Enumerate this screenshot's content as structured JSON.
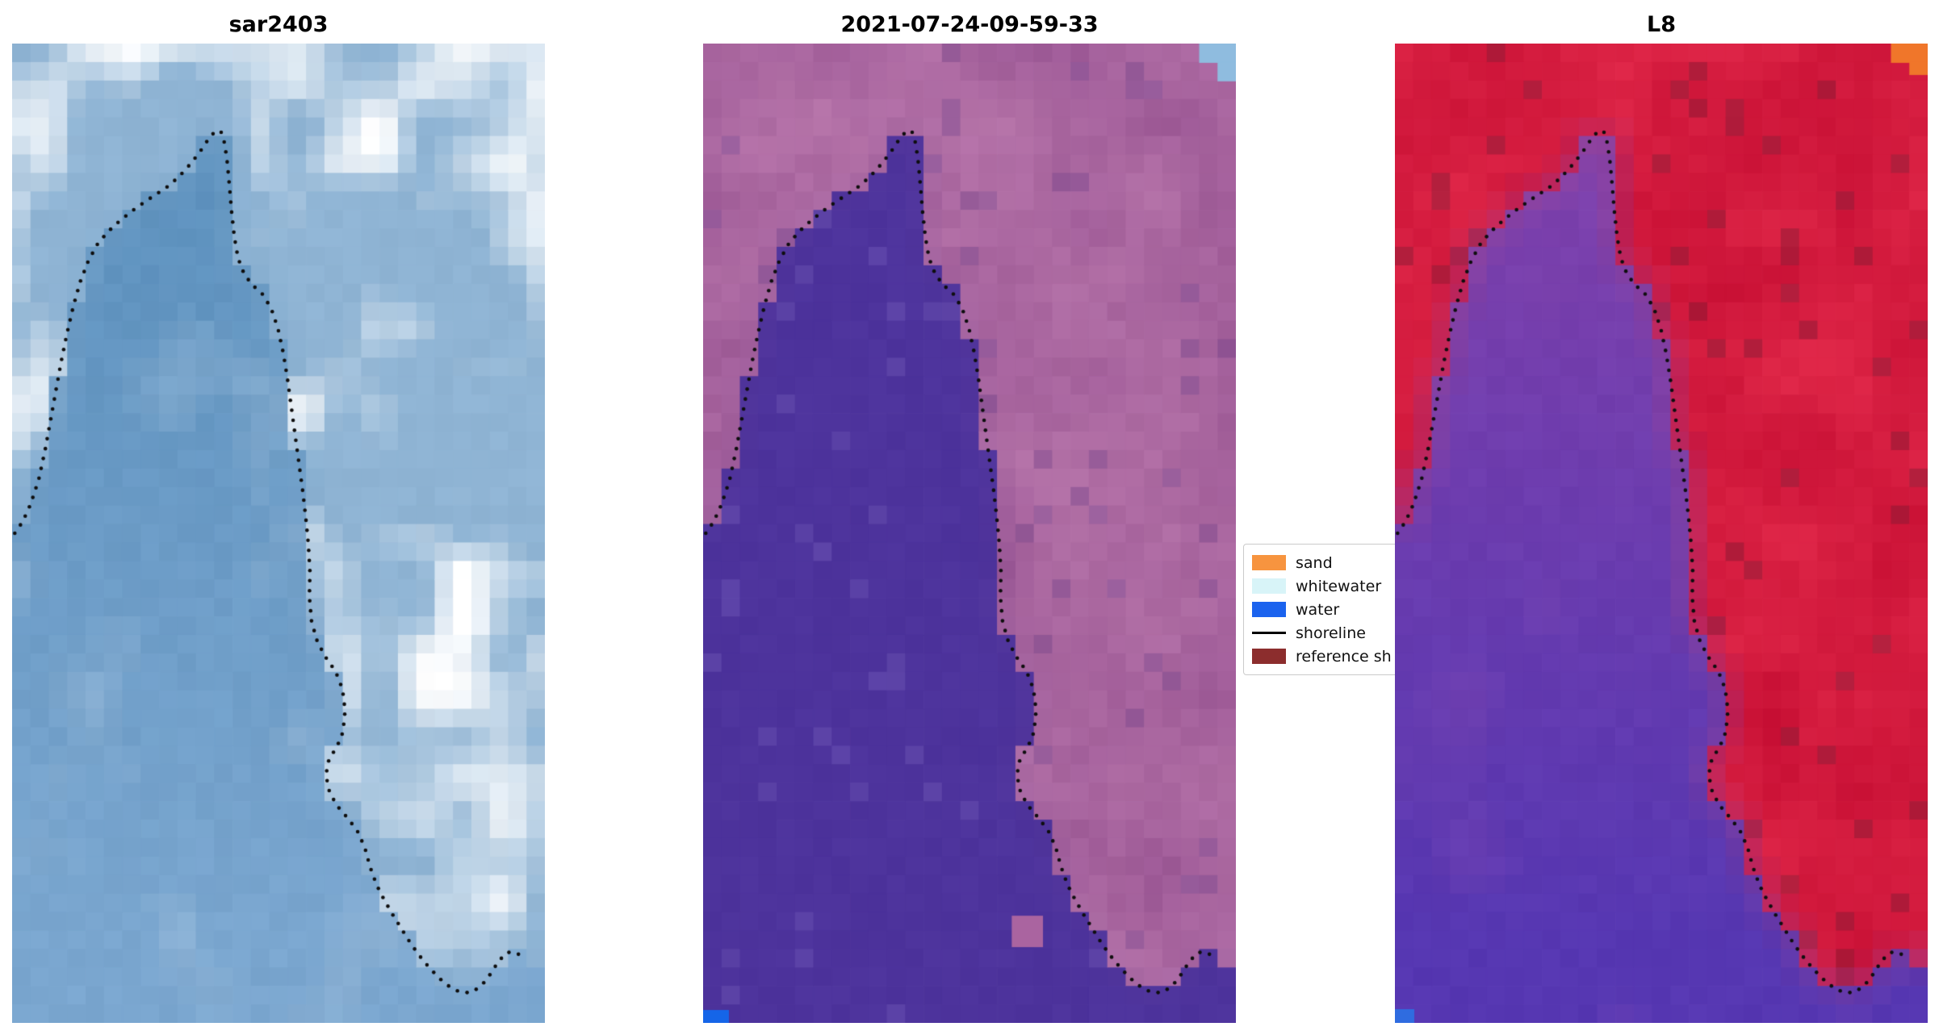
{
  "figure": {
    "background": "#ffffff",
    "panels": [
      {
        "id": "sar",
        "title": "sar2403",
        "colors": {
          "water_top": "#5a8fbc",
          "water_bottom": "#7aa6cf",
          "land_base": "#8fb4d4",
          "cloud": "#ffffff"
        }
      },
      {
        "id": "classified",
        "title": "2021-07-24-09-59-33",
        "colors": {
          "water": "#4d339c",
          "land_dark": "#9b5795",
          "land_light": "#b876aa",
          "corner_blue": "#8fbcdf",
          "bottom_blue": "#1565e8",
          "island_pink": "#aa64a0"
        }
      },
      {
        "id": "l8",
        "title": "L8",
        "colors": {
          "land_dark": "#c70f34",
          "land_light": "#e2294a",
          "maroon": "#8e1e38",
          "water_top": "#7e41ac",
          "water_bottom": "#5637b2",
          "corner_orange": "#f0762a",
          "corner_blue": "#2f6ce0"
        }
      }
    ],
    "legend": {
      "items": [
        {
          "label": "sand",
          "type": "patch",
          "color": "#f7943f"
        },
        {
          "label": "whitewater",
          "type": "patch",
          "color": "#d8f4f8"
        },
        {
          "label": "water",
          "type": "patch",
          "color": "#1b63ee"
        },
        {
          "label": "shoreline",
          "type": "line",
          "color": "#000000"
        },
        {
          "label": "reference sh",
          "type": "patch",
          "color": "#8c2d2d"
        }
      ]
    }
  },
  "chart_data": {
    "type": "heatmap",
    "subtype": "satellite-image-comparison",
    "panels": [
      "sar2403",
      "2021-07-24-09-59-33",
      "L8"
    ],
    "legend_entries": [
      "sand",
      "whitewater",
      "water",
      "shoreline",
      "reference sh"
    ],
    "axes": "off",
    "grid": {
      "cols": 29,
      "rows": 53
    },
    "shoreline_path_norm": [
      [
        0.005,
        0.5
      ],
      [
        0.02,
        0.488
      ],
      [
        0.035,
        0.47
      ],
      [
        0.05,
        0.445
      ],
      [
        0.062,
        0.415
      ],
      [
        0.072,
        0.385
      ],
      [
        0.082,
        0.355
      ],
      [
        0.092,
        0.325
      ],
      [
        0.103,
        0.296
      ],
      [
        0.115,
        0.268
      ],
      [
        0.128,
        0.243
      ],
      [
        0.143,
        0.222
      ],
      [
        0.16,
        0.205
      ],
      [
        0.18,
        0.192
      ],
      [
        0.202,
        0.181
      ],
      [
        0.225,
        0.171
      ],
      [
        0.248,
        0.162
      ],
      [
        0.27,
        0.154
      ],
      [
        0.292,
        0.146
      ],
      [
        0.313,
        0.136
      ],
      [
        0.333,
        0.124
      ],
      [
        0.352,
        0.111
      ],
      [
        0.368,
        0.098
      ],
      [
        0.382,
        0.089
      ],
      [
        0.392,
        0.09
      ],
      [
        0.399,
        0.102
      ],
      [
        0.404,
        0.122
      ],
      [
        0.408,
        0.146
      ],
      [
        0.412,
        0.172
      ],
      [
        0.417,
        0.197
      ],
      [
        0.424,
        0.219
      ],
      [
        0.436,
        0.236
      ],
      [
        0.452,
        0.247
      ],
      [
        0.47,
        0.256
      ],
      [
        0.486,
        0.27
      ],
      [
        0.499,
        0.291
      ],
      [
        0.509,
        0.316
      ],
      [
        0.517,
        0.343
      ],
      [
        0.524,
        0.371
      ],
      [
        0.531,
        0.399
      ],
      [
        0.538,
        0.427
      ],
      [
        0.545,
        0.455
      ],
      [
        0.551,
        0.483
      ],
      [
        0.556,
        0.511
      ],
      [
        0.559,
        0.539
      ],
      [
        0.558,
        0.565
      ],
      [
        0.562,
        0.59
      ],
      [
        0.573,
        0.611
      ],
      [
        0.589,
        0.627
      ],
      [
        0.607,
        0.641
      ],
      [
        0.62,
        0.659
      ],
      [
        0.625,
        0.681
      ],
      [
        0.621,
        0.703
      ],
      [
        0.609,
        0.719
      ],
      [
        0.595,
        0.73
      ],
      [
        0.589,
        0.747
      ],
      [
        0.596,
        0.765
      ],
      [
        0.611,
        0.779
      ],
      [
        0.63,
        0.791
      ],
      [
        0.648,
        0.804
      ],
      [
        0.662,
        0.821
      ],
      [
        0.672,
        0.841
      ],
      [
        0.684,
        0.859
      ],
      [
        0.699,
        0.875
      ],
      [
        0.715,
        0.89
      ],
      [
        0.731,
        0.904
      ],
      [
        0.747,
        0.918
      ],
      [
        0.764,
        0.931
      ],
      [
        0.782,
        0.943
      ],
      [
        0.801,
        0.954
      ],
      [
        0.821,
        0.963
      ],
      [
        0.842,
        0.969
      ],
      [
        0.862,
        0.969
      ],
      [
        0.881,
        0.962
      ],
      [
        0.898,
        0.95
      ],
      [
        0.913,
        0.937
      ],
      [
        0.929,
        0.928
      ],
      [
        0.946,
        0.928
      ],
      [
        0.96,
        0.934
      ]
    ]
  }
}
